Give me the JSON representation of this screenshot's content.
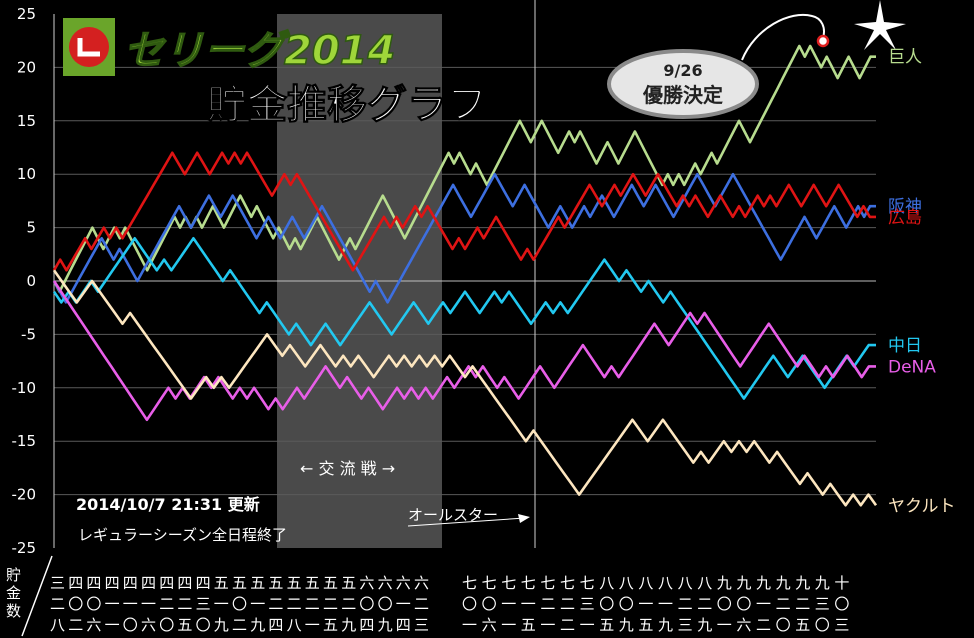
{
  "chart_data": {
    "type": "line",
    "title_top": "セリーグ2014",
    "title_main": "貯金推移グラフ",
    "ylabel": "貯金数",
    "ylim": [
      -25,
      25
    ],
    "yticks": [
      "25",
      "20",
      "15",
      "10",
      "5",
      "0",
      "-5",
      "-10",
      "-15",
      "-20",
      "-25"
    ],
    "interleague_label": "← 交 流 戦 →",
    "allstar_label": "オールスター",
    "clinch_date": "9/26",
    "clinch_text": "優勝決定",
    "update_text": "2014/10/7 21:31  更新",
    "status_text": "レギュラーシーズン全日程終了",
    "date_labels_left": [
      "三",
      "二",
      "八",
      "四",
      "〇",
      "二",
      "四",
      "〇",
      "六",
      "四",
      "一",
      "一",
      "四",
      "一",
      "〇",
      "四",
      "一",
      "六",
      "四",
      "二",
      "〇",
      "四",
      "二",
      "五",
      "四",
      "三",
      "〇",
      "五",
      "一",
      "九",
      "五",
      "〇",
      "二",
      "五",
      "一",
      "九",
      "五",
      "二",
      "四",
      "五",
      "二",
      "八",
      "五",
      "二",
      "一",
      "五",
      "二",
      "五",
      "五",
      "二",
      "九",
      "六",
      "〇",
      "四",
      "六",
      "〇",
      "九",
      "六",
      "一",
      "四",
      "六",
      "二",
      "三"
    ],
    "date_labels_right": [
      "七",
      "〇",
      "一",
      "七",
      "〇",
      "六",
      "七",
      "一",
      "一",
      "七",
      "一",
      "五",
      "七",
      "二",
      "一",
      "七",
      "二",
      "二",
      "七",
      "三",
      "一",
      "八",
      "〇",
      "五",
      "八",
      "〇",
      "九",
      "八",
      "一",
      "五",
      "八",
      "一",
      "九",
      "八",
      "二",
      "三",
      "八",
      "二",
      "九",
      "九",
      "〇",
      "一",
      "九",
      "〇",
      "六",
      "九",
      "一",
      "二",
      "九",
      "二",
      "〇",
      "九",
      "二",
      "五",
      "九",
      "三",
      "〇",
      "十",
      "〇",
      "三"
    ],
    "series": [
      {
        "name": "巨人",
        "color": "#b7dc8e",
        "values": [
          0,
          -1,
          0,
          1,
          2,
          3,
          4,
          5,
          4,
          3,
          4,
          5,
          4,
          5,
          4,
          3,
          2,
          1,
          2,
          3,
          4,
          5,
          6,
          5,
          6,
          5,
          6,
          5,
          6,
          7,
          6,
          5,
          6,
          7,
          8,
          7,
          6,
          7,
          6,
          5,
          4,
          5,
          4,
          3,
          4,
          3,
          4,
          5,
          6,
          5,
          4,
          3,
          2,
          3,
          4,
          3,
          4,
          5,
          6,
          7,
          8,
          7,
          6,
          5,
          4,
          5,
          6,
          7,
          8,
          9,
          10,
          11,
          12,
          11,
          12,
          11,
          10,
          11,
          10,
          9,
          10,
          11,
          12,
          13,
          14,
          15,
          14,
          13,
          14,
          15,
          14,
          13,
          12,
          13,
          14,
          13,
          14,
          13,
          12,
          11,
          12,
          13,
          12,
          11,
          12,
          13,
          14,
          13,
          12,
          11,
          10,
          9,
          10,
          9,
          10,
          9,
          10,
          11,
          10,
          11,
          12,
          11,
          12,
          13,
          14,
          15,
          14,
          13,
          14,
          15,
          16,
          17,
          18,
          19,
          20,
          21,
          22,
          21,
          22,
          21,
          20,
          21,
          20,
          19,
          20,
          21,
          20,
          19,
          20,
          21,
          21
        ]
      },
      {
        "name": "阪神",
        "color": "#3d6fe0",
        "values": [
          0,
          -1,
          -2,
          -1,
          0,
          1,
          2,
          3,
          4,
          3,
          2,
          3,
          2,
          1,
          0,
          1,
          2,
          3,
          4,
          5,
          6,
          7,
          6,
          5,
          6,
          7,
          8,
          7,
          6,
          7,
          8,
          7,
          6,
          5,
          4,
          5,
          6,
          5,
          4,
          5,
          6,
          5,
          4,
          5,
          6,
          7,
          6,
          5,
          4,
          3,
          2,
          1,
          0,
          -1,
          0,
          -1,
          -2,
          -1,
          0,
          1,
          2,
          3,
          4,
          5,
          6,
          7,
          8,
          9,
          8,
          7,
          6,
          7,
          8,
          9,
          10,
          9,
          8,
          7,
          8,
          9,
          8,
          7,
          6,
          5,
          6,
          7,
          6,
          5,
          6,
          7,
          6,
          7,
          8,
          7,
          6,
          7,
          8,
          9,
          8,
          7,
          8,
          9,
          8,
          7,
          6,
          7,
          8,
          9,
          10,
          9,
          8,
          7,
          8,
          9,
          10,
          9,
          8,
          7,
          6,
          5,
          4,
          3,
          2,
          3,
          4,
          5,
          6,
          5,
          4,
          5,
          6,
          7,
          6,
          5,
          6,
          7,
          6,
          7,
          7
        ]
      },
      {
        "name": "広島",
        "color": "#e01414",
        "values": [
          1,
          2,
          1,
          2,
          3,
          4,
          3,
          4,
          5,
          4,
          5,
          4,
          5,
          6,
          7,
          8,
          9,
          10,
          11,
          12,
          11,
          10,
          11,
          12,
          11,
          10,
          11,
          12,
          11,
          12,
          11,
          12,
          11,
          10,
          9,
          8,
          9,
          10,
          9,
          10,
          9,
          8,
          7,
          6,
          5,
          4,
          3,
          2,
          1,
          2,
          3,
          4,
          5,
          6,
          5,
          6,
          5,
          6,
          7,
          6,
          7,
          6,
          5,
          4,
          3,
          4,
          3,
          4,
          5,
          4,
          5,
          6,
          5,
          4,
          3,
          2,
          3,
          2,
          3,
          4,
          5,
          6,
          5,
          6,
          7,
          8,
          9,
          8,
          7,
          8,
          9,
          8,
          9,
          10,
          9,
          8,
          9,
          10,
          9,
          8,
          7,
          8,
          7,
          8,
          7,
          6,
          7,
          8,
          7,
          6,
          7,
          6,
          7,
          8,
          7,
          8,
          7,
          8,
          9,
          8,
          7,
          8,
          9,
          8,
          7,
          8,
          9,
          8,
          7,
          6,
          7,
          6,
          6
        ]
      },
      {
        "name": "中日",
        "color": "#22c8f0",
        "values": [
          -1,
          -2,
          -1,
          -2,
          -1,
          0,
          -1,
          0,
          1,
          2,
          3,
          4,
          3,
          2,
          1,
          2,
          1,
          2,
          3,
          4,
          3,
          2,
          1,
          0,
          1,
          0,
          -1,
          -2,
          -3,
          -2,
          -3,
          -4,
          -5,
          -4,
          -5,
          -6,
          -5,
          -4,
          -5,
          -6,
          -5,
          -4,
          -3,
          -2,
          -3,
          -4,
          -5,
          -4,
          -3,
          -2,
          -3,
          -4,
          -3,
          -2,
          -3,
          -2,
          -1,
          -2,
          -3,
          -2,
          -1,
          -2,
          -1,
          -2,
          -3,
          -4,
          -3,
          -2,
          -3,
          -2,
          -3,
          -2,
          -1,
          0,
          1,
          2,
          1,
          0,
          1,
          0,
          -1,
          0,
          -1,
          -2,
          -1,
          -2,
          -3,
          -4,
          -5,
          -6,
          -7,
          -8,
          -9,
          -10,
          -11,
          -10,
          -9,
          -8,
          -7,
          -8,
          -9,
          -8,
          -7,
          -8,
          -9,
          -10,
          -9,
          -8,
          -7,
          -8,
          -7,
          -6,
          -6
        ]
      },
      {
        "name": "DeNA",
        "color": "#e85ee8",
        "values": [
          0,
          -1,
          -2,
          -3,
          -4,
          -5,
          -6,
          -7,
          -8,
          -9,
          -10,
          -11,
          -12,
          -13,
          -12,
          -11,
          -10,
          -11,
          -10,
          -11,
          -10,
          -9,
          -10,
          -9,
          -10,
          -11,
          -10,
          -11,
          -10,
          -11,
          -12,
          -11,
          -12,
          -11,
          -10,
          -11,
          -10,
          -9,
          -8,
          -9,
          -10,
          -9,
          -10,
          -11,
          -10,
          -11,
          -12,
          -11,
          -10,
          -11,
          -10,
          -11,
          -10,
          -11,
          -10,
          -9,
          -10,
          -9,
          -8,
          -9,
          -8,
          -9,
          -10,
          -9,
          -10,
          -11,
          -10,
          -9,
          -8,
          -9,
          -10,
          -9,
          -8,
          -7,
          -6,
          -7,
          -8,
          -9,
          -8,
          -9,
          -8,
          -7,
          -6,
          -5,
          -4,
          -5,
          -6,
          -5,
          -4,
          -3,
          -4,
          -3,
          -4,
          -5,
          -6,
          -7,
          -8,
          -7,
          -6,
          -5,
          -4,
          -5,
          -6,
          -7,
          -8,
          -7,
          -8,
          -9,
          -8,
          -9,
          -8,
          -7,
          -8,
          -9,
          -8,
          -8
        ]
      },
      {
        "name": "ヤクルト",
        "color": "#fde6bf",
        "values": [
          1,
          0,
          -1,
          -2,
          -1,
          0,
          -1,
          -2,
          -3,
          -4,
          -3,
          -4,
          -5,
          -6,
          -7,
          -8,
          -9,
          -10,
          -11,
          -10,
          -9,
          -10,
          -9,
          -10,
          -9,
          -8,
          -7,
          -6,
          -5,
          -6,
          -7,
          -6,
          -7,
          -8,
          -7,
          -6,
          -7,
          -8,
          -7,
          -8,
          -7,
          -8,
          -9,
          -8,
          -7,
          -8,
          -7,
          -8,
          -7,
          -8,
          -7,
          -8,
          -7,
          -8,
          -9,
          -8,
          -9,
          -10,
          -11,
          -12,
          -13,
          -14,
          -15,
          -14,
          -15,
          -16,
          -17,
          -18,
          -19,
          -20,
          -19,
          -18,
          -17,
          -16,
          -15,
          -14,
          -13,
          -14,
          -15,
          -14,
          -13,
          -14,
          -15,
          -16,
          -17,
          -16,
          -17,
          -16,
          -15,
          -16,
          -15,
          -16,
          -15,
          -16,
          -17,
          -16,
          -17,
          -18,
          -19,
          -18,
          -19,
          -20,
          -19,
          -20,
          -21,
          -20,
          -21,
          -20,
          -21
        ]
      }
    ]
  }
}
